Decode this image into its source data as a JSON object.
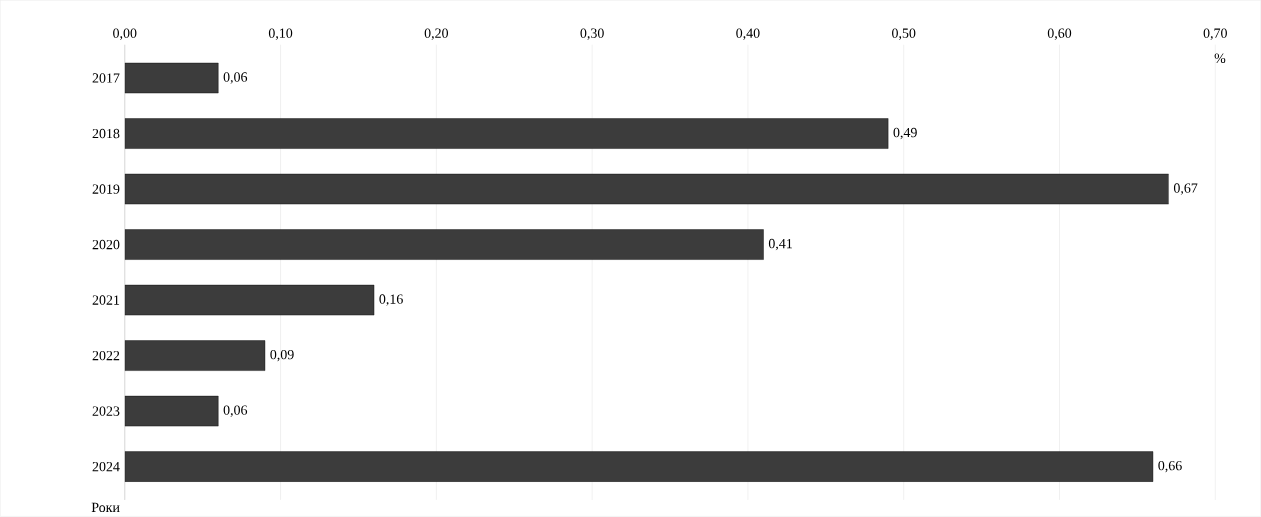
{
  "chart_data": {
    "type": "bar",
    "orientation": "horizontal",
    "categories": [
      "2017",
      "2018",
      "2019",
      "2020",
      "2021",
      "2022",
      "2023",
      "2024"
    ],
    "values": [
      0.06,
      0.49,
      0.67,
      0.41,
      0.16,
      0.09,
      0.06,
      0.66
    ],
    "value_labels": [
      "0,06",
      "0,49",
      "0,67",
      "0,41",
      "0,16",
      "0,09",
      "0,06",
      "0,66"
    ],
    "color": "#3c3c3c",
    "xlim": [
      0,
      0.7
    ],
    "xticks": [
      {
        "value": 0,
        "label": "0,00"
      },
      {
        "value": 0.1,
        "label": "0,10"
      },
      {
        "value": 0.2,
        "label": "0,20"
      },
      {
        "value": 0.3,
        "label": "0,30"
      },
      {
        "value": 0.4,
        "label": "0,40"
      },
      {
        "value": 0.5,
        "label": "0,50"
      },
      {
        "value": 0.6,
        "label": "0,60"
      },
      {
        "value": 0.7,
        "label": "0,70"
      }
    ],
    "xlabel": "%",
    "ylabel": "Роки",
    "grid": "x"
  }
}
